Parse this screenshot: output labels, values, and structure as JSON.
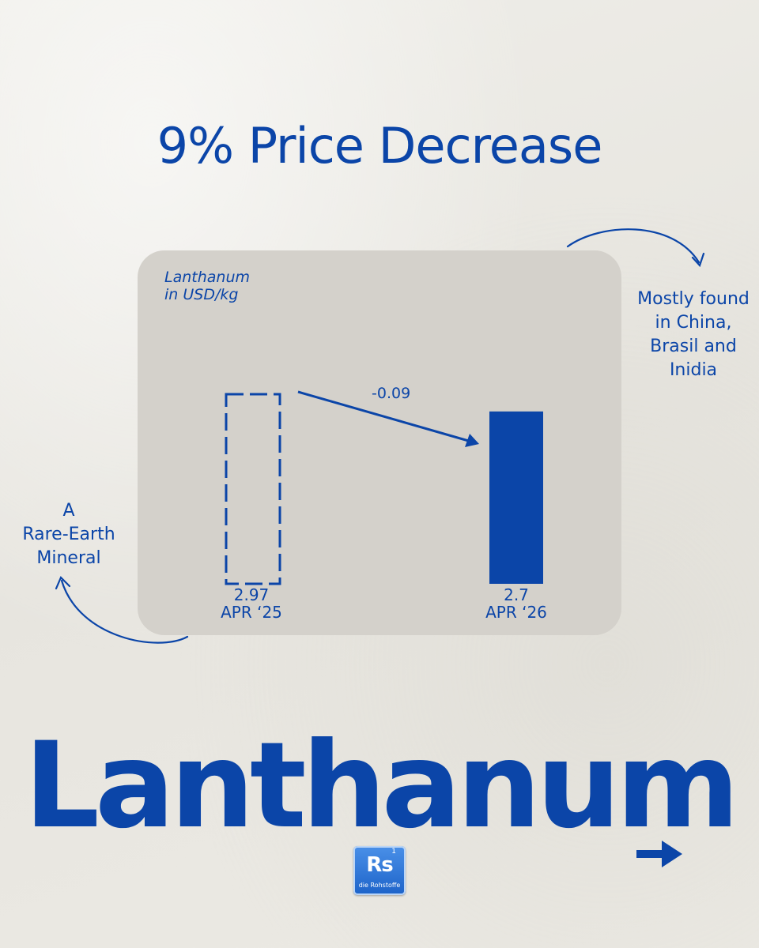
{
  "headline": "9% Price Decrease",
  "chart_data": {
    "type": "bar",
    "title": "Lanthanum",
    "unit_label": "in USD/kg",
    "categories": [
      "APR ‘25",
      "APR ‘26"
    ],
    "values": [
      2.97,
      2.7
    ],
    "value_labels": [
      "2.97",
      "2.7"
    ],
    "change_label": "-0.09",
    "ylim": [
      0,
      2.97
    ],
    "styles": [
      "dashed-outline",
      "solid"
    ],
    "color": "#0b45a8"
  },
  "notes": {
    "right": [
      "Mostly found",
      "in China,",
      "Brasil and",
      "Inidia"
    ],
    "left": [
      "A",
      "Rare-Earth",
      "Mineral"
    ]
  },
  "element_name": "Lanthanum",
  "logo": {
    "number": "1",
    "symbol": "Rs",
    "name": "die Rohstoffe"
  },
  "colors": {
    "accent": "#0b45a8",
    "panel": "#d4d1cb",
    "background": "#ecebe6"
  },
  "icons": {
    "next": "arrow-right-icon",
    "curl_right": "curved-arrow-icon",
    "curl_left": "curved-arrow-icon"
  }
}
